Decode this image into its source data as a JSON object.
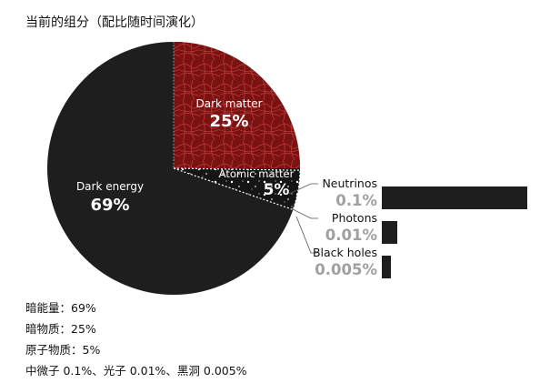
{
  "title": "当前的组分（配比随时间演化）",
  "colors": {
    "pie_dark": "#1e1e1e",
    "dark_matter": "#7a1212",
    "minor_label": "#111111",
    "minor_value": "#a0a0a0"
  },
  "chart_data": [
    {
      "type": "pie",
      "slices": [
        {
          "label": "Dark energy",
          "value_text": "69%",
          "value": 69
        },
        {
          "label": "Dark matter",
          "value_text": "25%",
          "value": 25
        },
        {
          "label": "Atomic matter",
          "value_text": "5%",
          "value": 5
        }
      ]
    },
    {
      "type": "bar",
      "orientation": "horizontal",
      "categories": [
        "Neutrinos",
        "Photons",
        "Black holes"
      ],
      "value_texts": [
        "0.1%",
        "0.01%",
        "0.005%"
      ],
      "values": [
        0.1,
        0.01,
        0.005
      ],
      "bar_scale": "not proportional (small values exaggerated)"
    }
  ],
  "notes": [
    "暗能量：69%",
    "暗物质：25%",
    "原子物质：5%",
    "中微子 0.1%、光子 0.01%、黑洞 0.005%"
  ]
}
